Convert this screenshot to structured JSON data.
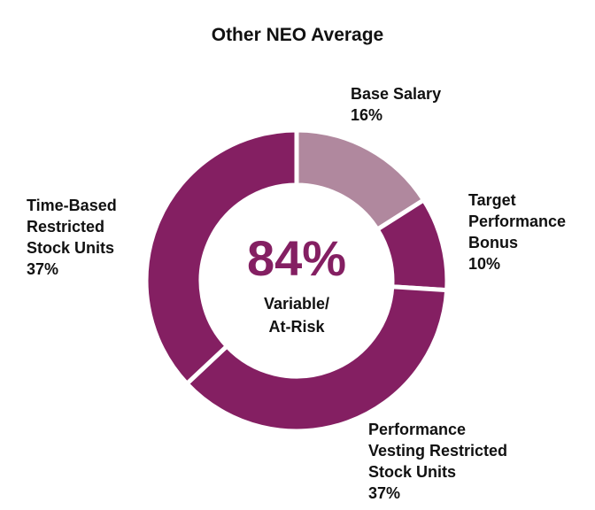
{
  "chart_data": {
    "type": "pie",
    "title": "Other NEO Average",
    "categories": [
      "Base Salary",
      "Target Performance Bonus",
      "Performance Vesting Restricted Stock Units",
      "Time-Based Restricted Stock Units"
    ],
    "values": [
      16,
      10,
      37,
      37
    ],
    "labels": [
      "Base Salary\n16%",
      "Target\nPerformance\nBonus\n10%",
      "Performance\nVesting Restricted\nStock Units\n37%",
      "Time-Based\nRestricted\nStock Units\n37%"
    ],
    "colors": [
      "#b0889e",
      "#841f62",
      "#841f62",
      "#841f62"
    ],
    "donut": true,
    "center_value": "84%",
    "center_label": "Variable/\nAt-Risk",
    "center_color": "#841f62"
  }
}
